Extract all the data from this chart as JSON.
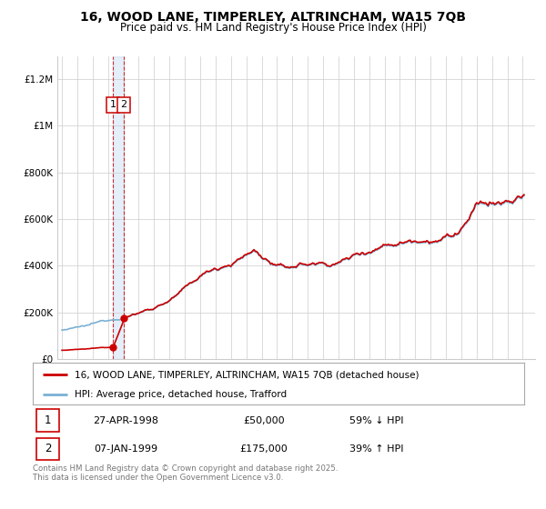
{
  "title": "16, WOOD LANE, TIMPERLEY, ALTRINCHAM, WA15 7QB",
  "subtitle": "Price paid vs. HM Land Registry's House Price Index (HPI)",
  "legend_line1": "16, WOOD LANE, TIMPERLEY, ALTRINCHAM, WA15 7QB (detached house)",
  "legend_line2": "HPI: Average price, detached house, Trafford",
  "transaction1_date": "27-APR-1998",
  "transaction1_price": "£50,000",
  "transaction1_hpi": "59% ↓ HPI",
  "transaction2_date": "07-JAN-1999",
  "transaction2_price": "£175,000",
  "transaction2_hpi": "39% ↑ HPI",
  "footer": "Contains HM Land Registry data © Crown copyright and database right 2025.\nThis data is licensed under the Open Government Licence v3.0.",
  "red_color": "#cc0000",
  "blue_color": "#7ab0d4",
  "ylabel_values": [
    0,
    200000,
    400000,
    600000,
    800000,
    1000000,
    1200000
  ],
  "ylabel_labels": [
    "£0",
    "£200K",
    "£400K",
    "£600K",
    "£800K",
    "£1M",
    "£1.2M"
  ],
  "ylim": [
    0,
    1300000
  ],
  "xlim_start": 1994.7,
  "xlim_end": 2025.8,
  "transaction1_x": 1998.32,
  "transaction1_y": 50000,
  "transaction2_x": 1999.03,
  "transaction2_y": 175000,
  "background_color": "#ffffff",
  "grid_color": "#cccccc"
}
